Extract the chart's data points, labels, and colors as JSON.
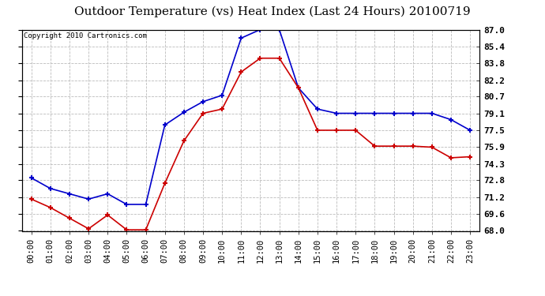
{
  "title": "Outdoor Temperature (vs) Heat Index (Last 24 Hours) 20100719",
  "copyright": "Copyright 2010 Cartronics.com",
  "hours": [
    "00:00",
    "01:00",
    "02:00",
    "03:00",
    "04:00",
    "05:00",
    "06:00",
    "07:00",
    "08:00",
    "09:00",
    "10:00",
    "11:00",
    "12:00",
    "13:00",
    "14:00",
    "15:00",
    "16:00",
    "17:00",
    "18:00",
    "19:00",
    "20:00",
    "21:00",
    "22:00",
    "23:00"
  ],
  "blue_temp": [
    73.0,
    72.0,
    71.5,
    71.0,
    71.5,
    70.5,
    70.5,
    78.0,
    79.2,
    80.2,
    80.8,
    86.2,
    87.0,
    87.0,
    81.5,
    79.5,
    79.1,
    79.1,
    79.1,
    79.1,
    79.1,
    79.1,
    78.5,
    77.5
  ],
  "red_temp": [
    71.0,
    70.2,
    69.2,
    68.2,
    69.5,
    68.1,
    68.1,
    72.5,
    76.5,
    79.1,
    79.5,
    83.0,
    84.3,
    84.3,
    81.5,
    77.5,
    77.5,
    77.5,
    76.0,
    76.0,
    76.0,
    75.9,
    74.9,
    75.0
  ],
  "blue_color": "#0000cc",
  "red_color": "#cc0000",
  "bg_color": "#ffffff",
  "grid_color": "#bbbbbb",
  "yticks": [
    68.0,
    69.6,
    71.2,
    72.8,
    74.3,
    75.9,
    77.5,
    79.1,
    80.7,
    82.2,
    83.8,
    85.4,
    87.0
  ],
  "ymin": 68.0,
  "ymax": 87.0,
  "title_fontsize": 11,
  "copyright_fontsize": 6.5,
  "tick_fontsize": 7.5,
  "ytick_fontsize": 8
}
